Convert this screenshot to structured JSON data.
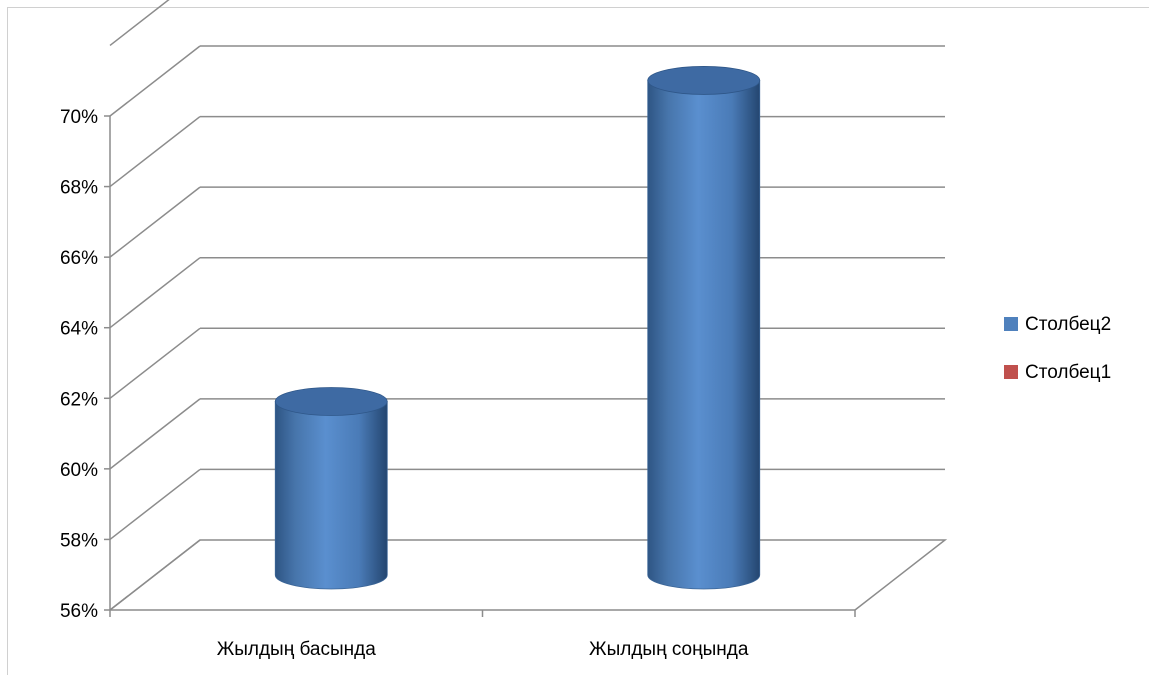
{
  "chart_data": {
    "type": "bar",
    "title": "",
    "xlabel": "",
    "ylabel": "",
    "categories": [
      "Жылдың басында",
      "Жылдың соңында"
    ],
    "series": [
      {
        "name": "Столбец2",
        "values": [
          61.2,
          70.3
        ],
        "color": "#4f81bd"
      },
      {
        "name": "Столбец1",
        "values": [
          null,
          null
        ],
        "color": "#c0504d"
      }
    ],
    "ylim": [
      56,
      70
    ],
    "yticks": [
      56,
      58,
      60,
      62,
      64,
      66,
      68,
      70
    ],
    "ytick_labels": [
      "56%",
      "58%",
      "60%",
      "62%",
      "64%",
      "66%",
      "68%",
      "70%"
    ],
    "grid": true,
    "legend_position": "right",
    "style": "3d-cylinder"
  }
}
